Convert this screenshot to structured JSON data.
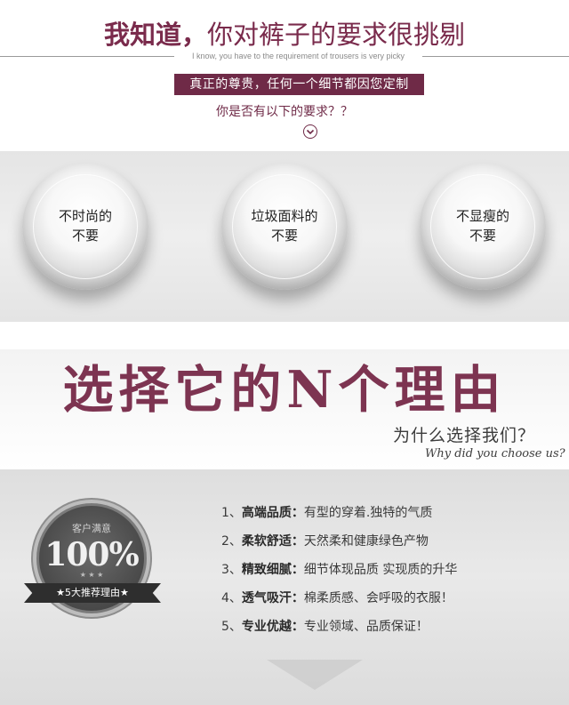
{
  "header": {
    "headline_strong": "我知道，",
    "headline_rest": "你对裤子的要求很挑剔",
    "subline": "I know, you have to the requirement of trousers is very picky",
    "banner": "真正的尊贵，任何一个细节都因您定制",
    "question": "你是否有以下的要求？？",
    "down_icon": "chevron-down-circle-icon"
  },
  "spheres": [
    {
      "line1": "不时尚的",
      "line2": "不要"
    },
    {
      "line1": "垃圾面料的",
      "line2": "不要"
    },
    {
      "line1": "不显瘦的",
      "line2": "不要"
    }
  ],
  "reasons_header": {
    "title": "选择它的N个理由",
    "why_cn": "为什么选择我们？",
    "why_en": "Why did you choose us?"
  },
  "badge": {
    "top_label": "客户满意",
    "percent": "100%",
    "ribbon": "★5大推荐理由★"
  },
  "reasons": [
    {
      "num": "1、",
      "key": "高端品质：",
      "desc": "有型的穿着.独特的气质"
    },
    {
      "num": "2、",
      "key": "柔软舒适：",
      "desc": "天然柔和健康绿色产物"
    },
    {
      "num": "3、",
      "key": "精致细腻：",
      "desc": "细节体现品质 实现质的升华"
    },
    {
      "num": "4、",
      "key": "透气吸汗：",
      "desc": "棉柔质感、会呼吸的衣服！"
    },
    {
      "num": "5、",
      "key": "专业优越：",
      "desc": "专业领域、品质保证！"
    }
  ],
  "colors": {
    "accent": "#6f2a47",
    "title": "#7d3451",
    "panel": "#e2e2e2"
  }
}
